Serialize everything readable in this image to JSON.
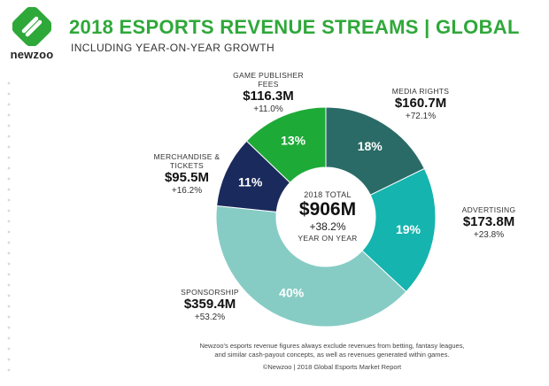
{
  "header": {
    "logo_text": "newzoo",
    "title": "2018 ESPORTS REVENUE STREAMS | GLOBAL",
    "subtitle": "INCLUDING YEAR-ON-YEAR GROWTH"
  },
  "center": {
    "label": "2018 TOTAL",
    "value": "$906M",
    "growth": "+38.2%",
    "sublabel": "YEAR ON YEAR"
  },
  "footer": {
    "note": "Newzoo's esports revenue figures always exclude revenues from betting, fantasy leagues, and similar cash-payout concepts, as well as revenues generated within games.",
    "source": "©Newzoo | 2018 Global Esports Market Report"
  },
  "chart_data": {
    "type": "pie",
    "donut": true,
    "slices": [
      {
        "name": "MEDIA RIGHTS",
        "value_label": "$160.7M",
        "value": 160.7,
        "growth": "+72.1%",
        "percent_label": "18%",
        "color": "#2a6b67"
      },
      {
        "name": "ADVERTISING",
        "value_label": "$173.8M",
        "value": 173.8,
        "growth": "+23.8%",
        "percent_label": "19%",
        "color": "#15b4ae"
      },
      {
        "name": "SPONSORSHIP",
        "value_label": "$359.4M",
        "value": 359.4,
        "growth": "+53.2%",
        "percent_label": "40%",
        "color": "#86ccc5"
      },
      {
        "name": "MERCHANDISE & TICKETS",
        "value_label": "$95.5M",
        "value": 95.5,
        "growth": "+16.2%",
        "percent_label": "11%",
        "color": "#1b2a5c"
      },
      {
        "name": "GAME PUBLISHER FEES",
        "value_label": "$116.3M",
        "value": 116.3,
        "growth": "+11.0%",
        "percent_label": "13%",
        "color": "#1eaa37"
      }
    ],
    "total": 906
  }
}
